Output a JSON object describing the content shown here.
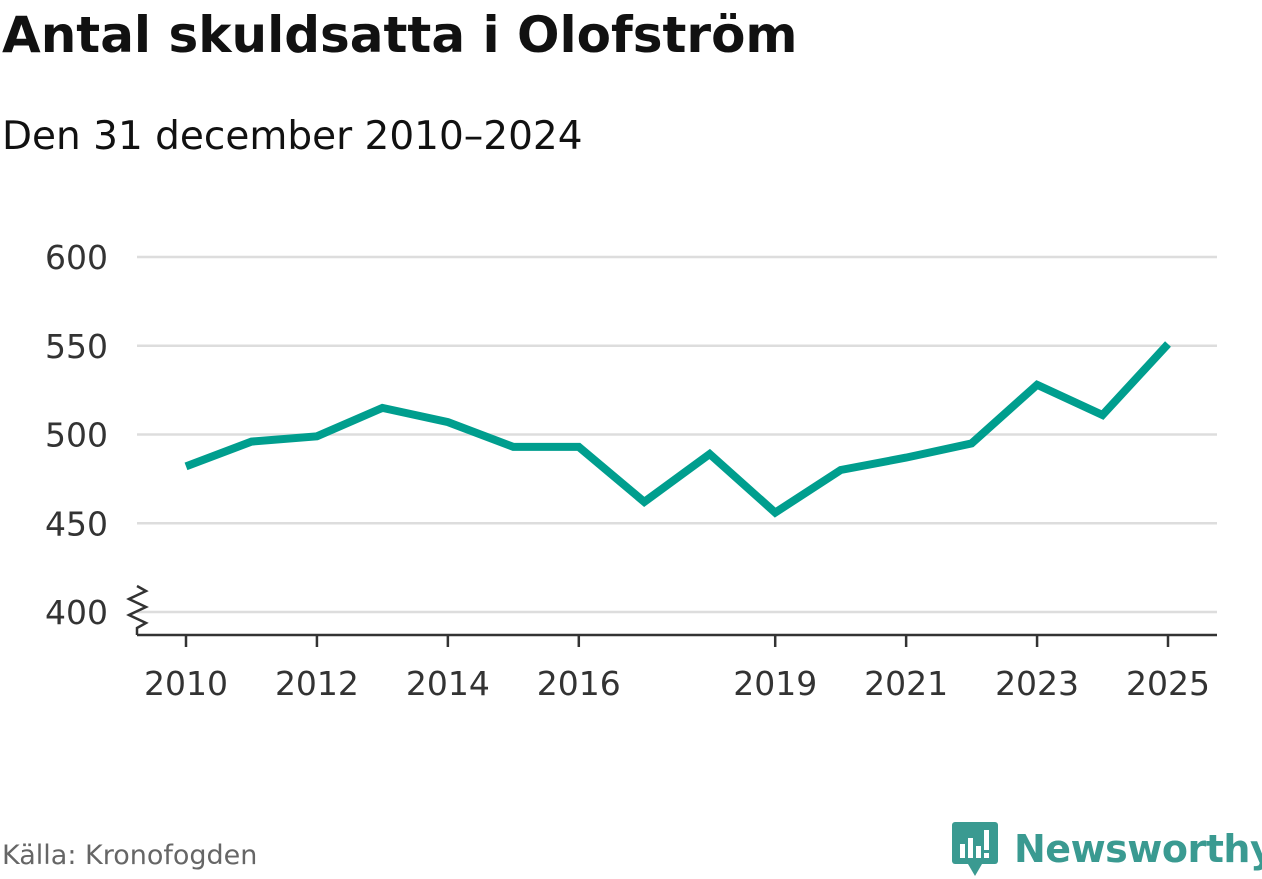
{
  "title": "Antal skuldsatta i Olofström",
  "subtitle": "Den 31 december 2010–2024",
  "source": "Källa: Kronofogden",
  "brand": {
    "name": "Newsworthy",
    "logo_icon": "newsworthy-logo-icon"
  },
  "colors": {
    "line": "#009e8e",
    "grid": "#dddddd",
    "axis": "#333333",
    "brand": "#3a9a91"
  },
  "chart_data": {
    "type": "line",
    "title": "Antal skuldsatta i Olofström",
    "subtitle": "Den 31 december 2010–2024",
    "xlabel": "",
    "ylabel": "",
    "x": [
      2010,
      2011,
      2012,
      2013,
      2014,
      2015,
      2016,
      2017,
      2018,
      2019,
      2020,
      2021,
      2022,
      2023,
      2024,
      2025
    ],
    "values": [
      482,
      496,
      499,
      515,
      507,
      493,
      493,
      462,
      489,
      456,
      480,
      487,
      495,
      528,
      511,
      551
    ],
    "ylim": [
      400,
      600
    ],
    "xlim": [
      2010,
      2025
    ],
    "y_ticks": [
      400,
      450,
      500,
      550,
      600
    ],
    "x_ticks": [
      2010,
      2012,
      2014,
      2016,
      2019,
      2021,
      2023,
      2025
    ],
    "axis_break": true,
    "grid": true
  }
}
